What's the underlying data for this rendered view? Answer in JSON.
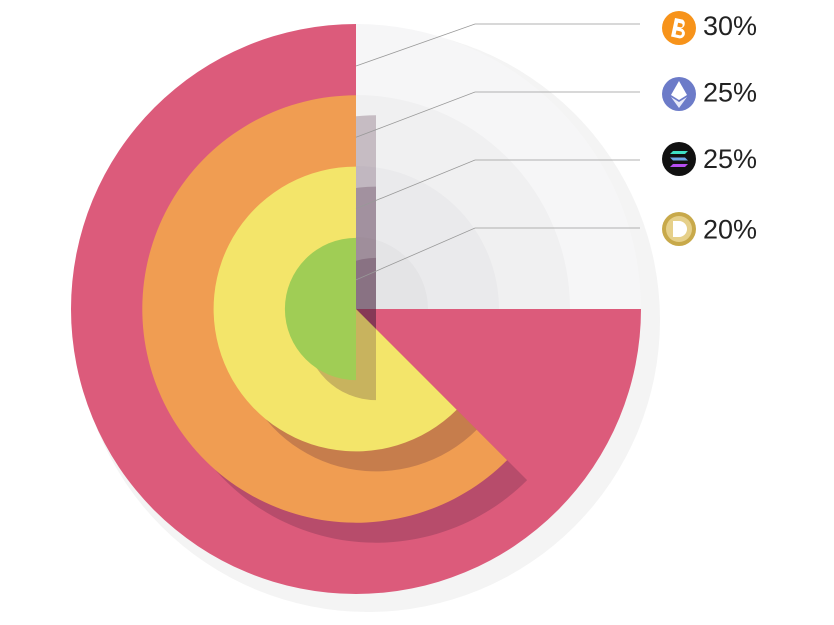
{
  "chart_data": {
    "type": "radial-pie",
    "values": [
      30,
      25,
      25,
      20
    ],
    "value_labels": [
      "30%",
      "25%",
      "25%",
      "20%"
    ],
    "colors": [
      "#dc5b7b",
      "#f09d52",
      "#f3e56a",
      "#a0cd55"
    ]
  }
}
